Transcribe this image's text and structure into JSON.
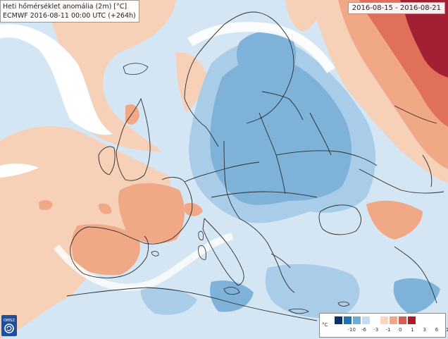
{
  "header": {
    "title": "Heti hőmérséklet anomália (2m) [°C]",
    "subtitle": "ECMWF 2016-08-11 00:00 UTC (+264h)",
    "date_range": "2016-08-15 - 2016-08-21"
  },
  "logo": {
    "text": "OMSZ",
    "icon": "omsz-logo-icon"
  },
  "legend": {
    "unit": "°C",
    "colors": [
      "#08306b",
      "#2171b5",
      "#6baed6",
      "#c6dbef",
      "#ffffff",
      "#fcd5bf",
      "#f4a582",
      "#d6604d",
      "#b2182b"
    ],
    "ticks": [
      "-10",
      "-6",
      "-3",
      "-1",
      "0",
      "1",
      "3",
      "6",
      "10"
    ]
  },
  "colors": {
    "cold_strong": "#7fb2d9",
    "cold_mid": "#a9cde8",
    "cold_light": "#d4e6f4",
    "neutral": "#ffffff",
    "warm_light": "#f7d0b8",
    "warm_mid": "#f1a887",
    "warm_strong": "#e0705a",
    "hot": "#a31f34",
    "borders": "#2b2b2b"
  }
}
